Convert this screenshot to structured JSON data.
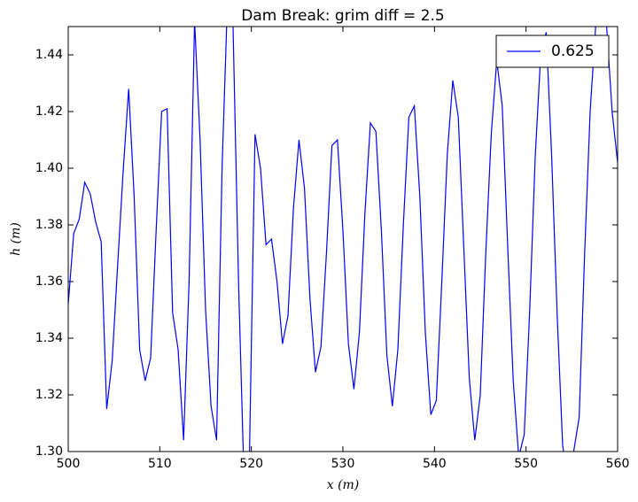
{
  "chart_data": {
    "type": "line",
    "title": "Dam Break: grim diff = 2.5",
    "x_label": "x (m)",
    "y_label": "h (m)",
    "x": [
      500,
      500.6,
      501.2,
      501.8,
      502.4,
      503,
      503.6,
      504.2,
      504.8,
      505.4,
      506,
      506.6,
      507.2,
      507.8,
      508.4,
      509,
      509.6,
      510.2,
      510.8,
      511.4,
      512,
      512.6,
      513.2,
      513.8,
      514.4,
      515,
      515.6,
      516.2,
      516.8,
      517.4,
      518,
      518.6,
      519.2,
      519.8,
      520.4,
      521,
      521.6,
      522.2,
      522.8,
      523.4,
      524,
      524.6,
      525.2,
      525.8,
      526.4,
      527,
      527.6,
      528.2,
      528.8,
      529.4,
      530,
      530.6,
      531.2,
      531.8,
      532.4,
      533,
      533.6,
      534.2,
      534.8,
      535.4,
      536,
      536.6,
      537.2,
      537.8,
      538.4,
      539,
      539.6,
      540.2,
      540.8,
      541.4,
      542,
      542.6,
      543.2,
      543.8,
      544.4,
      545,
      545.6,
      546.2,
      546.8,
      547.4,
      548,
      548.6,
      549.2,
      549.8,
      550.4,
      551,
      551.6,
      552.2,
      552.8,
      553.4,
      554,
      554.6,
      555.2,
      555.8,
      556.4,
      557,
      557.6,
      558.2,
      558.8,
      559.4,
      560
    ],
    "series": [
      {
        "name": "0.625",
        "color": "#0000ff",
        "values": [
          1.352,
          1.377,
          1.382,
          1.395,
          1.391,
          1.381,
          1.374,
          1.315,
          1.332,
          1.366,
          1.399,
          1.428,
          1.39,
          1.336,
          1.325,
          1.333,
          1.378,
          1.42,
          1.421,
          1.349,
          1.336,
          1.304,
          1.36,
          1.452,
          1.41,
          1.35,
          1.316,
          1.304,
          1.4,
          1.46,
          1.45,
          1.36,
          1.29,
          1.3,
          1.412,
          1.4,
          1.373,
          1.375,
          1.36,
          1.338,
          1.348,
          1.386,
          1.41,
          1.393,
          1.354,
          1.328,
          1.337,
          1.37,
          1.408,
          1.41,
          1.378,
          1.338,
          1.322,
          1.342,
          1.384,
          1.416,
          1.413,
          1.378,
          1.334,
          1.316,
          1.336,
          1.38,
          1.418,
          1.422,
          1.39,
          1.342,
          1.313,
          1.318,
          1.36,
          1.405,
          1.431,
          1.418,
          1.372,
          1.326,
          1.304,
          1.32,
          1.37,
          1.412,
          1.438,
          1.422,
          1.372,
          1.325,
          1.298,
          1.306,
          1.35,
          1.404,
          1.44,
          1.448,
          1.404,
          1.348,
          1.302,
          1.29,
          1.3,
          1.312,
          1.37,
          1.42,
          1.45,
          1.46,
          1.45,
          1.42,
          1.402
        ]
      }
    ],
    "xlim": [
      500,
      560
    ],
    "ylim": [
      1.3,
      1.45
    ],
    "xticks": [
      500,
      510,
      520,
      530,
      540,
      550,
      560
    ],
    "yticks": [
      {
        "value": 1.3,
        "label": "1.30"
      },
      {
        "value": 1.32,
        "label": "1.32"
      },
      {
        "value": 1.34,
        "label": "1.34"
      },
      {
        "value": 1.36,
        "label": "1.36"
      },
      {
        "value": 1.38,
        "label": "1.38"
      },
      {
        "value": 1.4,
        "label": "1.40"
      },
      {
        "value": 1.42,
        "label": "1.42"
      },
      {
        "value": 1.44,
        "label": "1.44"
      }
    ],
    "legend": "upper right"
  }
}
